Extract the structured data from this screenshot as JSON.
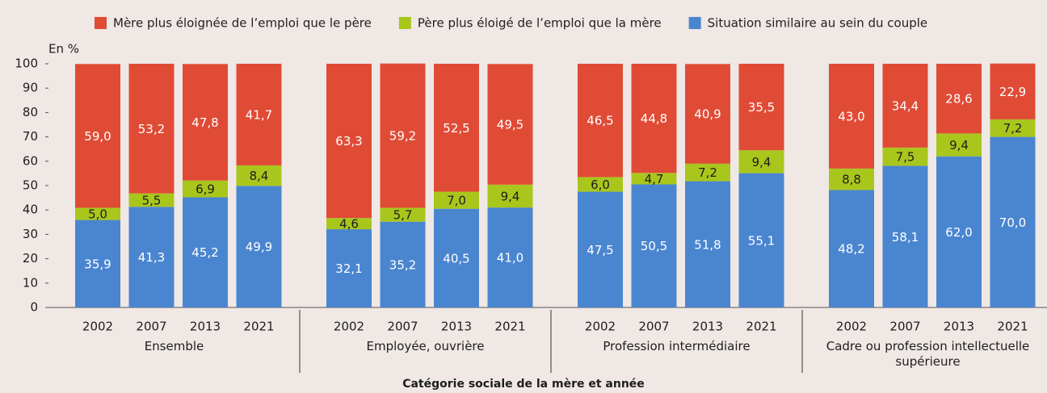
{
  "chart_data": {
    "type": "bar",
    "stacked": true,
    "y_label": "En %",
    "x_label": "Catégorie sociale de la mère et année",
    "groups": [
      {
        "name": "Ensemble",
        "categories": [
          "2002",
          "2007",
          "2013",
          "2021"
        ]
      },
      {
        "name": "Employée, ouvrière",
        "categories": [
          "2002",
          "2007",
          "2013",
          "2021"
        ]
      },
      {
        "name": "Profession intermédiaire",
        "categories": [
          "2002",
          "2007",
          "2013",
          "2021"
        ]
      },
      {
        "name": "Cadre ou profession intellectuelle supérieure",
        "categories": [
          "2002",
          "2007",
          "2013",
          "2021"
        ]
      }
    ],
    "series": [
      {
        "name": "Mère plus éloignée de l’emploi que le père",
        "color": "#e04b36",
        "values": [
          59.0,
          53.2,
          47.8,
          41.7,
          63.3,
          59.2,
          52.5,
          49.5,
          46.5,
          44.8,
          40.9,
          35.5,
          43.0,
          34.4,
          28.6,
          22.9
        ],
        "value_labels": [
          "59,0",
          "53,2",
          "47,8",
          "41,7",
          "63,3",
          "59,2",
          "52,5",
          "49,5",
          "46,5",
          "44,8",
          "40,9",
          "35,5",
          "43,0",
          "34,4",
          "28,6",
          "22,9"
        ]
      },
      {
        "name": "Père plus éloigé de l’emploi que la mère",
        "color": "#a9c61c",
        "values": [
          5.0,
          5.5,
          6.9,
          8.4,
          4.6,
          5.7,
          7.0,
          9.4,
          6.0,
          4.7,
          7.2,
          9.4,
          8.8,
          7.5,
          9.4,
          7.2
        ],
        "value_labels": [
          "5,0",
          "5,5",
          "6,9",
          "8,4",
          "4,6",
          "5,7",
          "7,0",
          "9,4",
          "6,0",
          "4,7",
          "7,2",
          "9,4",
          "8,8",
          "7,5",
          "9,4",
          "7,2"
        ]
      },
      {
        "name": "Situation similaire au sein du couple",
        "color": "#4a86d0",
        "values": [
          35.9,
          41.3,
          45.2,
          49.9,
          32.1,
          35.2,
          40.5,
          41.0,
          47.5,
          50.5,
          51.8,
          55.1,
          48.2,
          58.1,
          62.0,
          70.0
        ],
        "value_labels": [
          "35,9",
          "41,3",
          "45,2",
          "49,9",
          "32,1",
          "35,2",
          "40,5",
          "41,0",
          "47,5",
          "50,5",
          "51,8",
          "55,1",
          "48,2",
          "58,1",
          "62,0",
          "70,0"
        ]
      }
    ],
    "ylim": [
      0,
      100
    ],
    "yticks": [
      0,
      10,
      20,
      30,
      40,
      50,
      60,
      70,
      80,
      90,
      100
    ],
    "grid": false,
    "legend": "top"
  }
}
